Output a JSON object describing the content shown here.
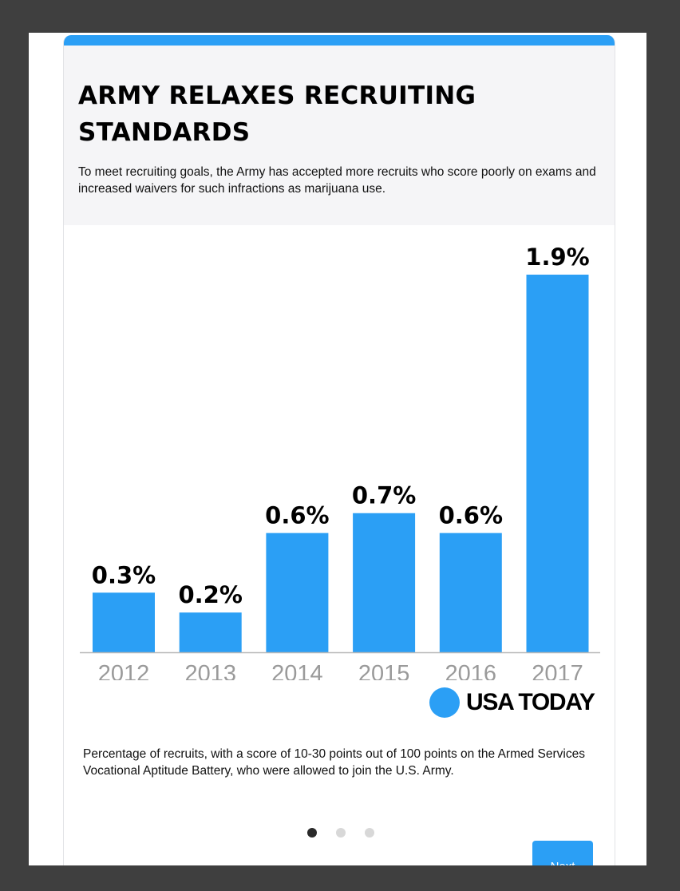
{
  "title": "ARMY RELAXES RECRUITING STANDARDS",
  "subtitle": "To meet recruiting goals, the Army has accepted more recruits who score poorly on exams and increased waivers for such infractions as marijuana use.",
  "brand": "USA TODAY",
  "caption": "Percentage of recruits, with a score of 10-30 points out of 100 points on the Armed Services Vocational Aptitude Battery, who were allowed to join the U.S. Army.",
  "pagination": {
    "total": 3,
    "active": 1
  },
  "next_label": "Next",
  "colors": {
    "accent": "#2b9ff5",
    "brand_dot": "#2b9ff5"
  },
  "chart_data": {
    "type": "bar",
    "categories": [
      "2012",
      "2013",
      "2014",
      "2015",
      "2016",
      "2017"
    ],
    "values": [
      0.3,
      0.2,
      0.6,
      0.7,
      0.6,
      1.9
    ],
    "data_labels": [
      "0.3%",
      "0.2%",
      "0.6%",
      "0.7%",
      "0.6%",
      "1.9%"
    ],
    "unit": "%",
    "ylim": [
      0,
      1.9
    ],
    "grid": false,
    "bar_color": "#2b9ff5"
  }
}
